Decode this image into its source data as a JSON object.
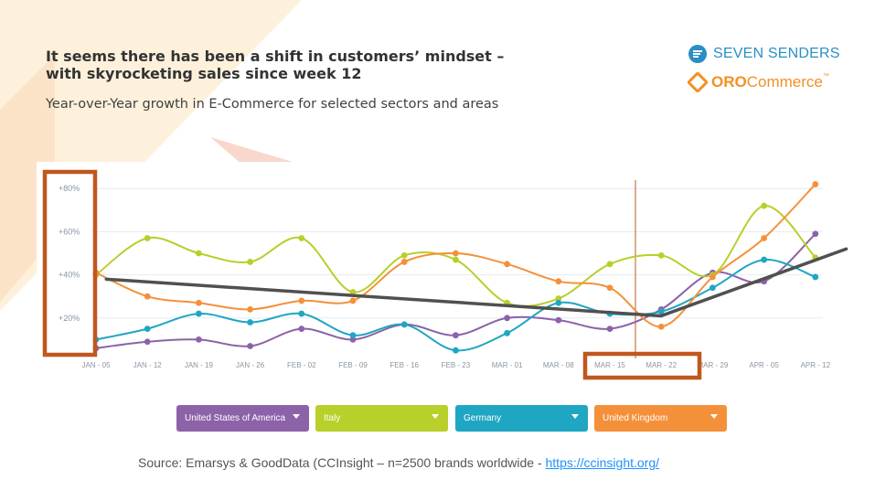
{
  "header": {
    "title_line1": "It seems there has been a shift in customers’ mindset –",
    "title_line2": "with skyrocketing sales since week 12",
    "subtitle": "Year-over-Year growth in E-Commerce for selected sectors and areas"
  },
  "logos": {
    "seven_senders": "SEVEN SENDERS",
    "oro_prefix": "ORO",
    "oro_suffix": "Commerce",
    "oro_tm": "™"
  },
  "source": {
    "text": "Source: Emarsys & GoodData (CCInsight – n=2500 brands worldwide - ",
    "link": "https://ccinsight.org/"
  },
  "colors": {
    "usa": "#8c62a8",
    "italy": "#b9cf2a",
    "germany": "#1fa6c2",
    "uk": "#f5903a",
    "trend": "#505050",
    "highlight": "#c0571d"
  },
  "chart_data": {
    "type": "line",
    "categories": [
      "JAN - 05",
      "JAN - 12",
      "JAN - 19",
      "JAN - 26",
      "FEB - 02",
      "FEB - 09",
      "FEB - 16",
      "FEB - 23",
      "MAR - 01",
      "MAR - 08",
      "MAR - 15",
      "MAR - 22",
      "MAR - 29",
      "APR - 05",
      "APR - 12"
    ],
    "y_ticks": [
      "+20%",
      "+40%",
      "+60%",
      "+80%"
    ],
    "ylim": [
      0,
      90
    ],
    "grid": true,
    "series": [
      {
        "name": "United States of America",
        "color_key": "usa",
        "values": [
          6,
          9,
          10,
          7,
          15,
          10,
          17,
          12,
          20,
          19,
          15,
          24,
          41,
          37,
          59
        ]
      },
      {
        "name": "Italy",
        "color_key": "italy",
        "values": [
          40,
          57,
          50,
          46,
          57,
          32,
          49,
          47,
          27,
          29,
          45,
          49,
          40,
          72,
          48
        ]
      },
      {
        "name": "Germany",
        "color_key": "germany",
        "values": [
          10,
          15,
          22,
          18,
          22,
          12,
          17,
          5,
          13,
          27,
          22,
          23,
          34,
          47,
          39
        ]
      },
      {
        "name": "United Kingdom",
        "color_key": "uk",
        "values": [
          41,
          30,
          27,
          24,
          28,
          28,
          46,
          50,
          45,
          37,
          34,
          16,
          39,
          57,
          82
        ]
      }
    ],
    "trend_line": {
      "from": {
        "x_index": 0.2,
        "y": 38
      },
      "via": {
        "x_index": 11.0,
        "y": 21
      },
      "to": {
        "x_index": 14.6,
        "y": 52
      }
    },
    "highlight_category": "MAR - 15",
    "legend": [
      "United States of America",
      "Italy",
      "Germany",
      "United Kingdom"
    ]
  }
}
